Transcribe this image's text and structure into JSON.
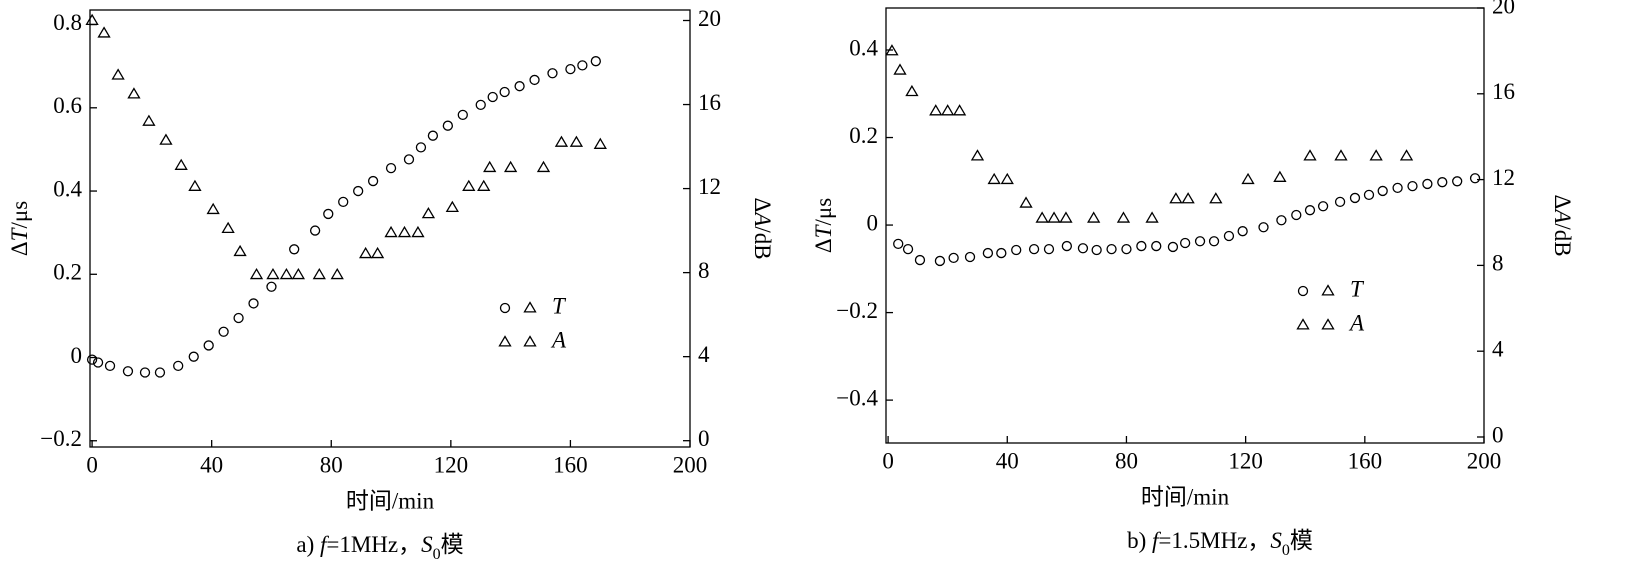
{
  "chart_data": [
    {
      "type": "scatter",
      "caption": [
        "a) ",
        "f",
        "=1MHz，",
        "S",
        "0",
        "模"
      ],
      "xlabel": "时间/min",
      "ylabel": [
        "Δ",
        "T",
        "/μs"
      ],
      "y2label": [
        "Δ",
        "A",
        "/dB"
      ],
      "xlim": [
        -0.7,
        200
      ],
      "xticks": [
        0,
        40,
        80,
        120,
        160,
        200
      ],
      "ylim": [
        -0.215,
        0.835
      ],
      "yticks": [
        {
          "value": -0.2,
          "label": "−0.2"
        },
        0,
        0.2,
        0.4,
        0.6,
        0.8
      ],
      "y2lim": [
        -0.3,
        20.5
      ],
      "y2ticks": [
        0,
        4,
        8,
        12,
        16,
        20
      ],
      "series": [
        {
          "name": "T",
          "color": "#000000",
          "marker": "circle",
          "x": [
            0,
            2,
            6,
            12,
            17.7,
            22.7,
            28.8,
            34,
            39,
            44,
            49,
            54,
            60,
            67.6,
            74.6,
            79,
            84,
            89,
            94,
            100,
            106,
            110,
            114,
            119,
            124,
            130,
            134,
            138,
            143,
            148,
            154,
            160,
            164,
            168.5
          ],
          "values": [
            -0.005,
            -0.012,
            -0.02,
            -0.033,
            -0.036,
            -0.036,
            -0.02,
            0.002,
            0.029,
            0.062,
            0.095,
            0.13,
            0.17,
            0.26,
            0.305,
            0.345,
            0.374,
            0.4,
            0.424,
            0.455,
            0.476,
            0.505,
            0.533,
            0.557,
            0.583,
            0.607,
            0.626,
            0.638,
            0.652,
            0.667,
            0.683,
            0.693,
            0.702,
            0.712
          ]
        },
        {
          "name": "A",
          "color": "#000000",
          "marker": "triangle",
          "axis": "y2",
          "x": [
            0,
            4,
            8.7,
            14,
            19,
            24.7,
            29.8,
            34.4,
            40.5,
            45.5,
            49.5,
            55,
            60.5,
            65,
            69,
            76,
            82,
            91.5,
            95.5,
            100,
            104.5,
            109,
            112.5,
            120.5,
            126,
            131,
            133,
            140,
            151,
            157,
            162,
            170
          ],
          "values": [
            20,
            19.4,
            17.4,
            16.5,
            15.2,
            14.3,
            13.1,
            12.1,
            11,
            10.1,
            9,
            7.9,
            7.9,
            7.9,
            7.9,
            7.9,
            7.9,
            8.9,
            8.9,
            9.9,
            9.9,
            9.9,
            10.8,
            11.1,
            12.1,
            12.1,
            13,
            13,
            13,
            14.2,
            14.2,
            14.1
          ]
        }
      ]
    },
    {
      "type": "scatter",
      "caption": [
        "b) ",
        "f",
        "=1.5MHz，",
        "S",
        "0",
        "模"
      ],
      "xlabel": "时间/min",
      "ylabel": [
        "Δ",
        "T",
        "/μs"
      ],
      "y2label": [
        "Δ",
        "A",
        "/dB"
      ],
      "xlim": [
        -0.7,
        200
      ],
      "xticks": [
        0,
        40,
        80,
        120,
        160,
        200
      ],
      "ylim": [
        -0.498,
        0.496
      ],
      "yticks": [
        {
          "value": -0.4,
          "label": "−0.4"
        },
        {
          "value": -0.2,
          "label": "−0.2"
        },
        0,
        0.2,
        0.4
      ],
      "y2lim": [
        -0.28,
        20
      ],
      "y2ticks": [
        0,
        4,
        8,
        12,
        16,
        20
      ],
      "series": [
        {
          "name": "T",
          "color": "#000000",
          "marker": "circle",
          "x": [
            3.4,
            6.7,
            10.7,
            17.4,
            22,
            27.5,
            33.5,
            38,
            43,
            49,
            54,
            60,
            65.4,
            70,
            75,
            80,
            85,
            90,
            95.6,
            99.7,
            104.7,
            109.4,
            114.4,
            119,
            126,
            132,
            137,
            141.6,
            146,
            151.7,
            156.7,
            161.4,
            166,
            171,
            176,
            181,
            186,
            191,
            197
          ],
          "values": [
            -0.043,
            -0.055,
            -0.08,
            -0.082,
            -0.075,
            -0.073,
            -0.064,
            -0.064,
            -0.057,
            -0.055,
            -0.055,
            -0.048,
            -0.053,
            -0.057,
            -0.055,
            -0.055,
            -0.048,
            -0.048,
            -0.05,
            -0.041,
            -0.037,
            -0.037,
            -0.025,
            -0.014,
            -0.005,
            0.011,
            0.023,
            0.034,
            0.043,
            0.053,
            0.062,
            0.069,
            0.078,
            0.085,
            0.089,
            0.094,
            0.098,
            0.1,
            0.107
          ]
        },
        {
          "name": "A",
          "color": "#000000",
          "marker": "triangle",
          "axis": "y2",
          "x": [
            1.3,
            4,
            8,
            16,
            20,
            24,
            30,
            35.6,
            40,
            46.3,
            51.7,
            55.7,
            59.7,
            69,
            79,
            88.6,
            96.6,
            100.7,
            110,
            120.8,
            131.5,
            141.6,
            152,
            163.8,
            174
          ],
          "values": [
            18,
            17.1,
            16.1,
            15.2,
            15.2,
            15.2,
            13.1,
            12,
            12,
            10.9,
            10.2,
            10.2,
            10.2,
            10.2,
            10.2,
            10.2,
            11.1,
            11.1,
            11.1,
            12,
            12.1,
            13.1,
            13.1,
            13.1,
            13.1
          ]
        }
      ]
    }
  ]
}
